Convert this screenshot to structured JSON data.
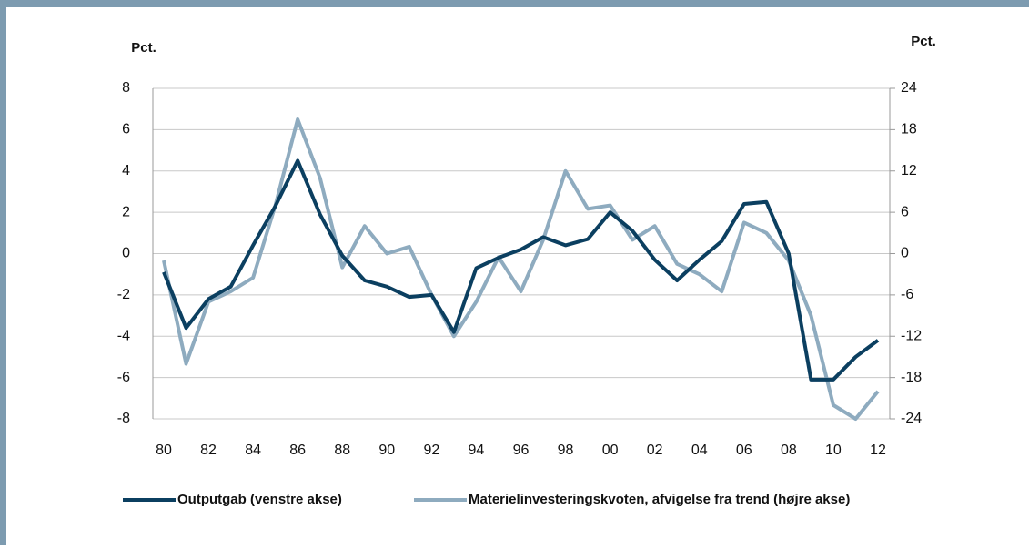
{
  "chart_data": {
    "type": "line",
    "ylabel": "Pct.",
    "y2label": "Pct.",
    "categories": [
      "80",
      null,
      "82",
      null,
      "84",
      null,
      "86",
      null,
      "88",
      null,
      "90",
      null,
      "92",
      null,
      "94",
      null,
      "96",
      null,
      "98",
      null,
      "00",
      null,
      "02",
      null,
      "04",
      null,
      "06",
      null,
      "08",
      null,
      "10",
      null,
      "12"
    ],
    "ylim": [
      -8,
      8
    ],
    "yticks": [
      -8,
      -6,
      -4,
      -2,
      0,
      2,
      4,
      6,
      8
    ],
    "y2lim": [
      -24,
      24
    ],
    "y2ticks": [
      -24,
      -18,
      -12,
      -6,
      0,
      6,
      12,
      18,
      24
    ],
    "grid": true,
    "legend": "bottom",
    "series": [
      {
        "name": "Outputgab (venstre akse)",
        "color": "#0b3f60",
        "axis": "y",
        "values": [
          -0.9,
          -3.6,
          -2.2,
          -1.6,
          0.4,
          2.3,
          4.5,
          1.9,
          -0.1,
          -1.3,
          -1.6,
          -2.1,
          -2.0,
          -3.8,
          -0.7,
          -0.2,
          0.2,
          0.8,
          0.4,
          0.7,
          2.0,
          1.1,
          -0.3,
          -1.3,
          -0.3,
          0.6,
          2.4,
          2.5,
          0.0,
          -6.1,
          -6.1,
          -5.0,
          -4.2
        ]
      },
      {
        "name": "Materielinvesteringskvoten, afvigelse fra trend (højre akse)",
        "color": "#8eabbf",
        "axis": "y2",
        "values": [
          -1,
          -16,
          -7,
          -5.5,
          -3.5,
          7,
          19.5,
          11,
          -2,
          4,
          0,
          1,
          -6,
          -12,
          -7,
          -0.5,
          -5.5,
          2,
          12,
          6.5,
          7,
          2,
          4,
          -1.5,
          -3,
          -5.5,
          4.5,
          3,
          -1,
          -9,
          -22,
          -24,
          -20
        ]
      }
    ]
  }
}
